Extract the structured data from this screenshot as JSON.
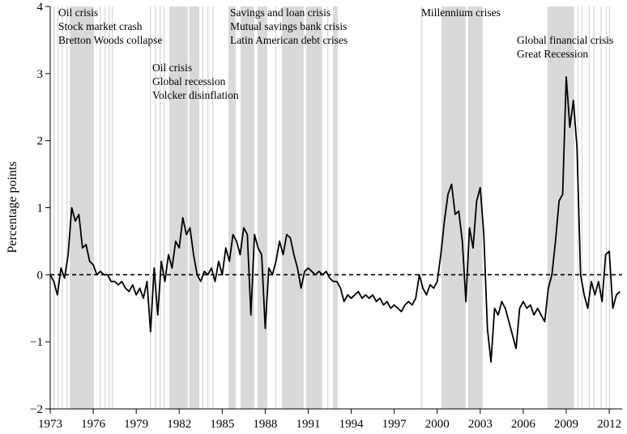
{
  "chart_data": {
    "type": "line",
    "y_label": "Percentage points",
    "xlim": [
      1973,
      2012.9
    ],
    "ylim": [
      -2,
      4
    ],
    "xticks": [
      1973,
      1976,
      1979,
      1982,
      1985,
      1988,
      1991,
      1994,
      1997,
      2000,
      2003,
      2006,
      2009,
      2012
    ],
    "yticks": [
      {
        "value": -2,
        "label": "−2"
      },
      {
        "value": -1,
        "label": "−1"
      },
      0,
      1,
      2,
      3,
      4
    ],
    "reference_line": 0,
    "color": "#000000",
    "shade_color": "#d9d9d9",
    "shaded_periods": [
      [
        1973.23,
        1973.31
      ],
      [
        1973.5,
        1973.58
      ],
      [
        1973.8,
        1973.88
      ],
      [
        1974.13,
        1974.21
      ],
      [
        1974.36,
        1976.05
      ],
      [
        1976.45,
        1976.53
      ],
      [
        1976.79,
        1976.87
      ],
      [
        1977.07,
        1977.15
      ],
      [
        1977.29,
        1977.37
      ],
      [
        1979.95,
        1980.03
      ],
      [
        1980.29,
        1980.37
      ],
      [
        1980.63,
        1980.71
      ],
      [
        1980.9,
        1980.98
      ],
      [
        1981.3,
        1982.6
      ],
      [
        1982.7,
        1983.4
      ],
      [
        1983.6,
        1983.68
      ],
      [
        1983.96,
        1984.04
      ],
      [
        1984.3,
        1984.38
      ],
      [
        1985.43,
        1985.94
      ],
      [
        1986.28,
        1987.24
      ],
      [
        1987.46,
        1988.14
      ],
      [
        1988.7,
        1988.78
      ],
      [
        1989.16,
        1990.68
      ],
      [
        1990.85,
        1991.98
      ],
      [
        1992.32,
        1992.4
      ],
      [
        1992.72,
        1993.06
      ],
      [
        1998.88,
        1998.96
      ],
      [
        2000.29,
        2001.98
      ],
      [
        2002.15,
        2003.17
      ],
      [
        2007.69,
        2009.55
      ],
      [
        2009.78,
        2009.86
      ],
      [
        2010.06,
        2010.14
      ],
      [
        2010.57,
        2010.65
      ],
      [
        2010.9,
        2010.98
      ],
      [
        2011.4,
        2011.48
      ],
      [
        2011.76,
        2011.84
      ],
      [
        2011.98,
        2012.06
      ]
    ],
    "annotations": [
      [
        "Oil crisis",
        "Stock market crash",
        "Bretton Woods collapse"
      ],
      [
        "Oil crisis",
        "Global recession",
        "Volcker disinflation"
      ],
      [
        "Savings and loan crisis",
        "Mutual savings bank crisis",
        "Latin American debt crises"
      ],
      [
        "Millennium crises"
      ],
      [
        "Global financial crisis",
        "Great Recession"
      ]
    ],
    "x": [
      1973,
      1973.25,
      1973.5,
      1973.75,
      1974,
      1974.25,
      1974.5,
      1974.75,
      1975,
      1975.25,
      1975.5,
      1975.75,
      1976,
      1976.25,
      1976.5,
      1976.75,
      1977,
      1977.25,
      1977.5,
      1977.75,
      1978,
      1978.25,
      1978.5,
      1978.75,
      1979,
      1979.25,
      1979.5,
      1979.75,
      1980,
      1980.25,
      1980.5,
      1980.75,
      1981,
      1981.25,
      1981.5,
      1981.75,
      1982,
      1982.25,
      1982.5,
      1982.75,
      1983,
      1983.25,
      1983.5,
      1983.75,
      1984,
      1984.25,
      1984.5,
      1984.75,
      1985,
      1985.25,
      1985.5,
      1985.75,
      1986,
      1986.25,
      1986.5,
      1986.75,
      1987,
      1987.25,
      1987.5,
      1987.75,
      1988,
      1988.25,
      1988.5,
      1988.75,
      1989,
      1989.25,
      1989.5,
      1989.75,
      1990,
      1990.25,
      1990.5,
      1990.75,
      1991,
      1991.25,
      1991.5,
      1991.75,
      1992,
      1992.25,
      1992.5,
      1992.75,
      1993,
      1993.25,
      1993.5,
      1993.75,
      1994,
      1994.25,
      1994.5,
      1994.75,
      1995,
      1995.25,
      1995.5,
      1995.75,
      1996,
      1996.25,
      1996.5,
      1996.75,
      1997,
      1997.25,
      1997.5,
      1997.75,
      1998,
      1998.25,
      1998.5,
      1998.75,
      1999,
      1999.25,
      1999.5,
      1999.75,
      2000,
      2000.25,
      2000.5,
      2000.75,
      2001,
      2001.25,
      2001.5,
      2001.75,
      2002,
      2002.25,
      2002.5,
      2002.75,
      2003,
      2003.25,
      2003.5,
      2003.75,
      2004,
      2004.25,
      2004.5,
      2004.75,
      2005,
      2005.25,
      2005.5,
      2005.75,
      2006,
      2006.25,
      2006.5,
      2006.75,
      2007,
      2007.25,
      2007.5,
      2007.75,
      2008,
      2008.25,
      2008.5,
      2008.75,
      2009,
      2009.25,
      2009.5,
      2009.75,
      2010,
      2010.25,
      2010.5,
      2010.75,
      2011,
      2011.25,
      2011.5,
      2011.75,
      2012,
      2012.25,
      2012.5,
      2012.75
    ],
    "values": [
      0,
      -0.1,
      -0.3,
      0.1,
      -0.05,
      0.3,
      1.0,
      0.8,
      0.9,
      0.4,
      0.45,
      0.2,
      0.15,
      0,
      0.05,
      0,
      0,
      -0.1,
      -0.1,
      -0.15,
      -0.1,
      -0.2,
      -0.25,
      -0.15,
      -0.3,
      -0.2,
      -0.35,
      -0.1,
      -0.85,
      0.1,
      -0.6,
      0.2,
      -0.1,
      0.3,
      0.1,
      0.5,
      0.4,
      0.85,
      0.6,
      0.7,
      0.3,
      0,
      -0.1,
      0.05,
      0,
      0.1,
      -0.1,
      0.2,
      0,
      0.4,
      0.2,
      0.6,
      0.5,
      0.3,
      0.7,
      0.6,
      -0.6,
      0.6,
      0.4,
      0.3,
      -0.8,
      0.1,
      0,
      0.2,
      0.5,
      0.3,
      0.6,
      0.55,
      0.3,
      0.1,
      -0.2,
      0.05,
      0.1,
      0.05,
      0,
      0.05,
      0,
      0.05,
      -0.05,
      -0.1,
      -0.1,
      -0.2,
      -0.4,
      -0.3,
      -0.35,
      -0.3,
      -0.25,
      -0.35,
      -0.3,
      -0.35,
      -0.3,
      -0.4,
      -0.35,
      -0.45,
      -0.4,
      -0.5,
      -0.45,
      -0.5,
      -0.55,
      -0.45,
      -0.4,
      -0.45,
      -0.35,
      0,
      -0.2,
      -0.3,
      -0.15,
      -0.2,
      -0.1,
      0.3,
      0.8,
      1.2,
      1.35,
      0.9,
      0.95,
      0.5,
      -0.4,
      0.7,
      0.4,
      1.1,
      1.3,
      0.6,
      -0.8,
      -1.3,
      -0.5,
      -0.6,
      -0.4,
      -0.5,
      -0.7,
      -0.9,
      -1.1,
      -0.5,
      -0.4,
      -0.5,
      -0.45,
      -0.6,
      -0.5,
      -0.6,
      -0.7,
      -0.2,
      0,
      0.5,
      1.1,
      1.2,
      2.95,
      2.2,
      2.6,
      1.9,
      0,
      -0.3,
      -0.5,
      -0.1,
      -0.3,
      -0.1,
      -0.4,
      0.3,
      0.35,
      -0.5,
      -0.3,
      -0.25
    ]
  }
}
